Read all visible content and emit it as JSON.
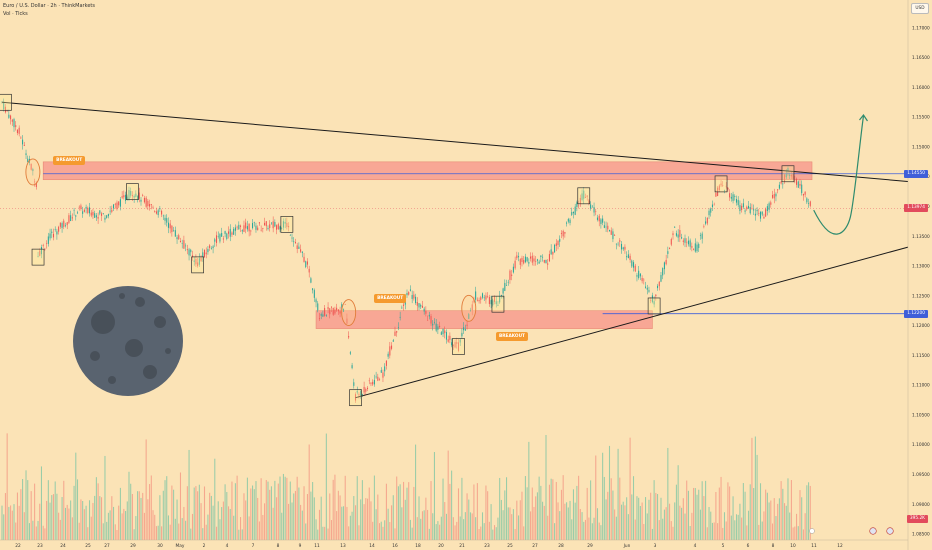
{
  "header": {
    "symbol": "Euro / U.S. Dollar · 2h · ThinkMarkets",
    "indicator": "Vol · Ticks"
  },
  "currency_button": "USD",
  "chart_data": {
    "type": "candlestick",
    "price_axis": {
      "ticks": [
        "1.17000",
        "1.16500",
        "1.16000",
        "1.15500",
        "1.15000",
        "1.14500",
        "1.14000",
        "1.13500",
        "1.13000",
        "1.12500",
        "1.12000",
        "1.11500",
        "1.11000",
        "1.10500",
        "1.10000",
        "1.09500",
        "1.09000",
        "1.08500"
      ],
      "ylim": [
        1.084,
        1.173
      ]
    },
    "date_axis": [
      "22",
      "23",
      "24",
      "25",
      "27",
      "29",
      "30",
      "May",
      "2",
      "4",
      "7",
      "8",
      "9",
      "11",
      "13",
      "14",
      "16",
      "18",
      "20",
      "21",
      "23",
      "25",
      "27",
      "28",
      "29",
      "Jun",
      "3",
      "4",
      "5",
      "6",
      "8",
      "10",
      "11",
      "12"
    ],
    "price_labels": [
      {
        "text": "1.14550",
        "price": 1.1455,
        "color": "#3f5fd9"
      },
      {
        "text": "1.13974",
        "price": 1.1397,
        "color": "#e24b5c"
      },
      {
        "text": "1.12200",
        "price": 1.122,
        "color": "#3f5fd9"
      },
      {
        "text": "395.2K",
        "price": 1.0876,
        "color": "#e24b5c"
      }
    ],
    "zones": [
      {
        "name": "resistance",
        "from": 1.1445,
        "to": 1.1475,
        "start_index": 24,
        "end_index": 472
      },
      {
        "name": "support",
        "from": 1.1195,
        "to": 1.1225,
        "start_index": 183,
        "end_index": 379
      }
    ],
    "horizontal_levels": [
      {
        "price": 1.1455,
        "start_index": 24,
        "end_index": 532,
        "color": "#3f5fd9"
      },
      {
        "price": 1.122,
        "start_index": 350,
        "end_index": 532,
        "color": "#3f5fd9"
      }
    ],
    "trendlines": [
      {
        "name": "descending",
        "from": {
          "index": 0,
          "price": 1.1575
        },
        "to": {
          "index": 532,
          "price": 1.1441
        }
      },
      {
        "name": "ascending",
        "from": {
          "index": 206,
          "price": 1.1079
        },
        "to": {
          "index": 532,
          "price": 1.1335
        }
      }
    ],
    "projection": {
      "points": [
        {
          "index": 473,
          "price": 1.1394
        },
        {
          "index": 484,
          "price": 1.1343
        },
        {
          "index": 492,
          "price": 1.1372
        },
        {
          "index": 502,
          "price": 1.1552
        }
      ]
    },
    "breakouts": [
      {
        "text": "BREAKOUT",
        "index": 24,
        "price": 1.1478
      },
      {
        "text": "BREAKOUT",
        "index": 211,
        "price": 1.1247
      },
      {
        "text": "BREAKOUT",
        "index": 282,
        "price": 1.1183
      }
    ],
    "circles": [
      {
        "index": 18,
        "price": 1.1458
      },
      {
        "index": 202,
        "price": 1.1222
      },
      {
        "index": 272,
        "price": 1.1229
      }
    ],
    "boxes": [
      {
        "index": 2,
        "price": 1.1575
      },
      {
        "index": 21,
        "price": 1.1315
      },
      {
        "index": 76,
        "price": 1.1425
      },
      {
        "index": 114,
        "price": 1.1302
      },
      {
        "index": 166,
        "price": 1.137
      },
      {
        "index": 206,
        "price": 1.1079
      },
      {
        "index": 266,
        "price": 1.1165
      },
      {
        "index": 289,
        "price": 1.1236
      },
      {
        "index": 339,
        "price": 1.1418
      },
      {
        "index": 380,
        "price": 1.1233
      },
      {
        "index": 419,
        "price": 1.1438
      },
      {
        "index": 458,
        "price": 1.1455
      }
    ],
    "bars": 472,
    "bar_color_up": "#26a69a",
    "bar_color_down": "#ef5350"
  }
}
